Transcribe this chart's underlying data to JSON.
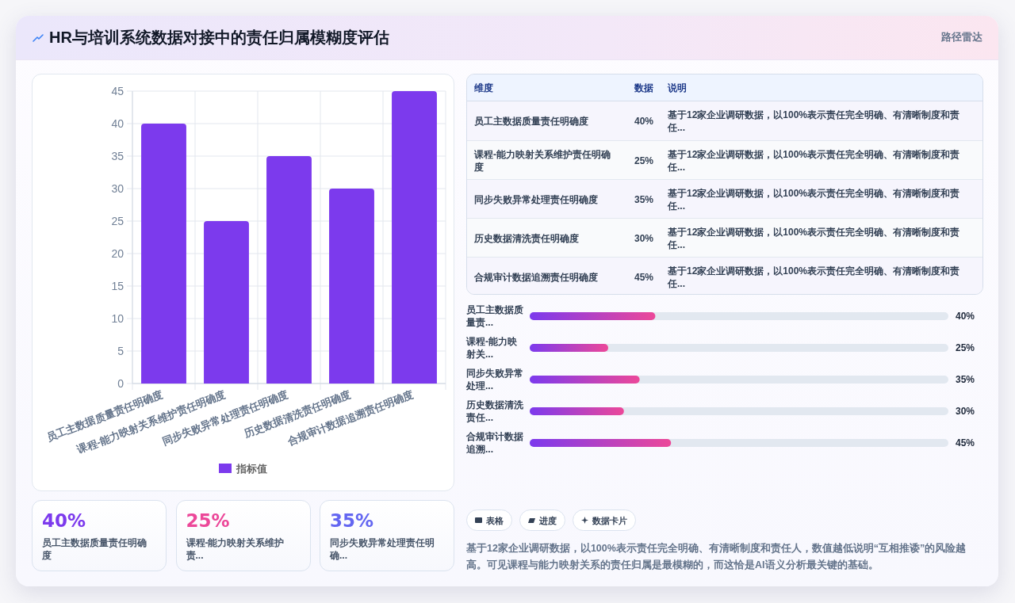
{
  "chart_data": [
    {
      "type": "other",
      "title": "HR与培训系统数据对接中的责任归属模糊度评估",
      "subtitle": "路径雷达"
    },
    {
      "type": "bar",
      "categories": [
        "员工主数据质量责任明确度",
        "课程-能力映射关系维护责任明确度",
        "同步失败异常处理责任明确度",
        "历史数据清洗责任明确度",
        "合规审计数据追溯责任明确度"
      ],
      "series": [
        {
          "name": "指标值",
          "color": "#7c3aed",
          "values": [
            40,
            25,
            35,
            30,
            45
          ]
        }
      ],
      "ylim": [
        0,
        45
      ],
      "yticks": [
        0,
        5,
        10,
        15,
        20,
        25,
        30,
        35,
        40,
        45
      ],
      "grid": true,
      "legend": "bottom"
    },
    {
      "type": "other",
      "categories": [
        "员工主数据质量责任明确度",
        "课程-能力映射关系维护责任明确度",
        "同步失败异常处理责任明确度",
        "历史数据清洗责任明确度",
        "合规审计数据追溯责任明确度"
      ],
      "values": [
        40,
        25,
        35,
        30,
        45
      ],
      "value_labels": [
        "40%",
        "25%",
        "35%",
        "30%",
        "45%"
      ],
      "annotations": [
        "维度",
        "数据",
        "说明",
        "基于12家企业调研数据，以100%表示责任完全明确、有清晰制度和责任...",
        "基于12家企业调研数据，以100%表示责任完全明确、有清晰制度和责任...",
        "基于12家企业调研数据，以100%表示责任完全明确、有清晰制度和责任...",
        "基于12家企业调研数据，以100%表示责任完全明确、有清晰制度和责任...",
        "基于12家企业调研数据，以100%表示责任完全明确、有清晰制度和责任..."
      ]
    },
    {
      "type": "bar",
      "orientation": "horizontal",
      "categories": [
        "员工主数据质量责...",
        "课程-能力映射关...",
        "同步失败异常处理...",
        "历史数据清洗责任...",
        "合规审计数据追溯..."
      ],
      "values": [
        40,
        25,
        35,
        30,
        45
      ],
      "color": "#7c3aed",
      "value_labels": [
        "40%",
        "25%",
        "35%",
        "30%",
        "45%"
      ],
      "xlim": [
        0,
        133.3
      ]
    },
    {
      "type": "other",
      "categories": [
        "员工主数据质量责任明确度",
        "课程-能力映射关系维护责...",
        "同步失败异常处理责任明确..."
      ],
      "values": [
        40,
        25,
        35
      ],
      "value_labels": [
        "40%",
        "25%",
        "35%"
      ],
      "colors": [
        "#7c3aed",
        "#ec4899",
        "#6366f1"
      ]
    },
    {
      "type": "other",
      "annotations": [
        "表格",
        "进度",
        "数据卡片",
        "基于12家企业调研数据，以100%表示责任完全明确、有清晰制度和责任人，数值越低说明“互相推诿”的风险越高。可见课程与能力映射关系的责任归属是最模糊的，而这恰是AI语义分析最关键的基础。"
      ]
    }
  ]
}
